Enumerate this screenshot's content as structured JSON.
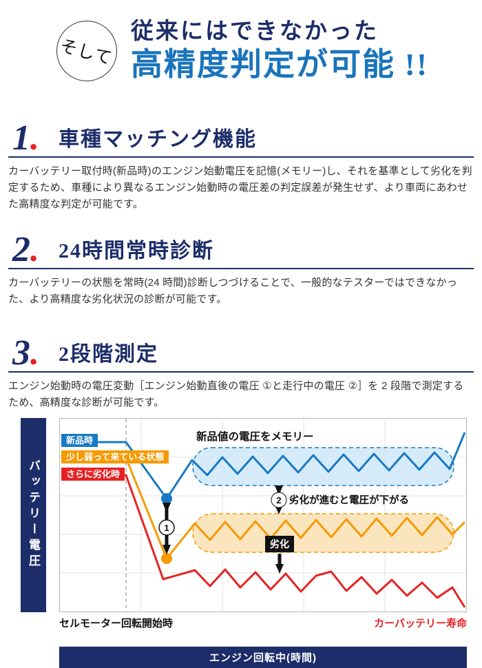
{
  "header": {
    "badge": "そして",
    "title_line1": "従来にはできなかった",
    "title_line2": "高精度判定が可能 !!"
  },
  "sections": [
    {
      "num": "1",
      "dot": ".",
      "title": "車種マッチング機能",
      "body": "カーバッテリー取付時(新品時)のエンジン始動電圧を記憶(メモリー)し、それを基準として劣化を判定するため、車種により異なるエンジン始動時の電圧差の判定誤差が発生せず、より車両にあわせた高精度な判定が可能です。"
    },
    {
      "num": "2",
      "dot": ".",
      "title": "24時間常時診断",
      "body": "カーバッテリーの状態を常時(24 時間)診断しつづけることで、一般的なテスターではできなかった、より高精度な劣化状況の診断が可能です。"
    },
    {
      "num": "3",
      "dot": ".",
      "title": "2段階測定",
      "body": "エンジン始動時の電圧変動［エンジン始動直後の電圧 ①と走行中の電圧 ②］を 2 段階で測定するため、高精度な診断が可能です。"
    }
  ],
  "chart": {
    "y_axis_label": "バッテリー電圧",
    "x_axis_label": "エンジン回転中(時間)",
    "x_start_label": "セルモーター回転開始時",
    "x_end_label": "カーバッテリー寿命",
    "legend": [
      {
        "label": "新品時",
        "color": "#1779c4"
      },
      {
        "label": "少し弱って来ている状態",
        "color": "#f59a00"
      },
      {
        "label": "さらに劣化時",
        "color": "#e62222"
      }
    ],
    "annotations": {
      "memory": "新品値の電圧をメモリー",
      "drop_text": "劣化が進むと電圧が下がる",
      "deteriorate_label": "劣化",
      "step1": "1",
      "step2": "2"
    }
  },
  "chart_data": {
    "type": "line",
    "title": "",
    "xlabel": "エンジン回転中(時間)",
    "ylabel": "バッテリー電圧",
    "legend_position": "top-left",
    "grid": true,
    "series": [
      {
        "name": "新品時",
        "color": "#1779c4",
        "points": [
          [
            2,
            34
          ],
          [
            96,
            34
          ],
          [
            155,
            116
          ],
          [
            192,
            60
          ],
          [
            214,
            82
          ],
          [
            236,
            56
          ],
          [
            258,
            80
          ],
          [
            280,
            55
          ],
          [
            302,
            79
          ],
          [
            324,
            54
          ],
          [
            346,
            78
          ],
          [
            368,
            53
          ],
          [
            390,
            77
          ],
          [
            412,
            52
          ],
          [
            434,
            76
          ],
          [
            456,
            51
          ],
          [
            478,
            75
          ],
          [
            500,
            50
          ],
          [
            522,
            74
          ],
          [
            544,
            49
          ],
          [
            566,
            73
          ],
          [
            588,
            20
          ]
        ]
      },
      {
        "name": "少し弱って来ている状態",
        "color": "#f59a00",
        "points": [
          [
            2,
            57
          ],
          [
            96,
            57
          ],
          [
            155,
            203
          ],
          [
            196,
            152
          ],
          [
            218,
            176
          ],
          [
            240,
            150
          ],
          [
            262,
            175
          ],
          [
            284,
            149
          ],
          [
            306,
            174
          ],
          [
            328,
            148
          ],
          [
            350,
            173
          ],
          [
            372,
            147
          ],
          [
            394,
            172
          ],
          [
            416,
            146
          ],
          [
            438,
            171
          ],
          [
            460,
            145
          ],
          [
            482,
            170
          ],
          [
            504,
            144
          ],
          [
            526,
            169
          ],
          [
            548,
            143
          ],
          [
            570,
            168
          ],
          [
            588,
            150
          ]
        ]
      },
      {
        "name": "さらに劣化時",
        "color": "#e62222",
        "points": [
          [
            2,
            82
          ],
          [
            96,
            82
          ],
          [
            150,
            233
          ],
          [
            196,
            220
          ],
          [
            218,
            243
          ],
          [
            240,
            219
          ],
          [
            262,
            245
          ],
          [
            284,
            223
          ],
          [
            306,
            248
          ],
          [
            328,
            225
          ],
          [
            350,
            251
          ],
          [
            372,
            228
          ],
          [
            394,
            222
          ],
          [
            416,
            250
          ],
          [
            438,
            230
          ],
          [
            460,
            254
          ],
          [
            482,
            234
          ],
          [
            504,
            257
          ],
          [
            526,
            238
          ],
          [
            548,
            260
          ],
          [
            570,
            245
          ],
          [
            588,
            274
          ]
        ]
      }
    ],
    "markers": [
      {
        "x": 155,
        "y": 116,
        "color": "#1779c4"
      },
      {
        "x": 155,
        "y": 203,
        "color": "#f59a00"
      }
    ]
  },
  "colors": {
    "navy": "#1c2d69",
    "headline_blue": "#1a74bc",
    "red": "#e62222",
    "orange": "#f59a00",
    "line_blue": "#1779c4"
  }
}
